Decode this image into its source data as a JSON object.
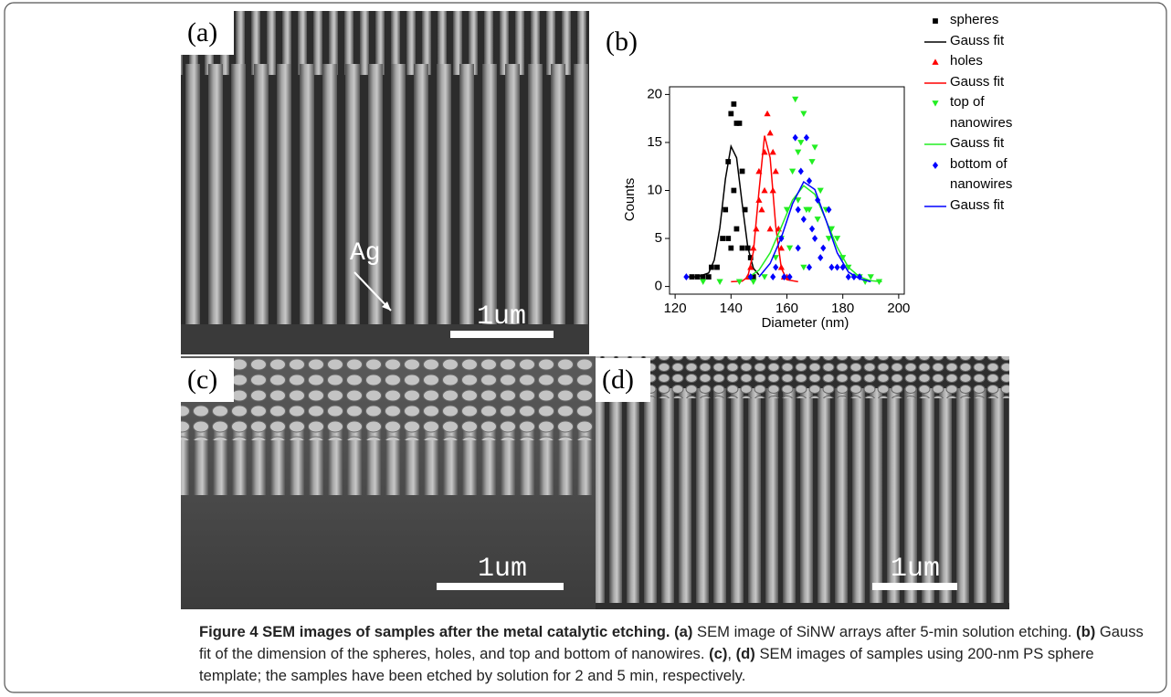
{
  "panels": {
    "a": {
      "label": "(a)",
      "annotation": "Ag",
      "scale_bar": "1um"
    },
    "c": {
      "label": "(c)",
      "scale_bar": "1um"
    },
    "d": {
      "label": "(d)",
      "scale_bar": "1um"
    }
  },
  "chart_data": {
    "type": "scatter",
    "panel_label": "(b)",
    "x_label": "Diameter (nm)",
    "y_label": "Counts",
    "xlim": [
      118,
      202
    ],
    "ylim": [
      -0.8,
      20.8
    ],
    "xticks": [
      120,
      140,
      160,
      180,
      200
    ],
    "yticks": [
      0,
      5,
      10,
      15,
      20
    ],
    "legend": "right",
    "series": [
      {
        "name": "spheres",
        "color": "#000000",
        "marker": "square",
        "x": [
          126,
          128,
          130,
          132,
          133,
          135,
          137,
          138,
          139,
          140,
          141,
          142,
          143,
          144,
          145,
          146,
          147,
          148,
          139,
          140,
          141,
          142,
          144
        ],
        "values": [
          1,
          1,
          1,
          1,
          2,
          2,
          5,
          8,
          13,
          18,
          19,
          17,
          17,
          12,
          8,
          4,
          3,
          1,
          5,
          4,
          10,
          6,
          4
        ]
      },
      {
        "name": "Gauss fit",
        "color": "#000000",
        "marker": "line",
        "x": [
          124,
          128,
          132,
          134,
          136,
          138,
          140,
          142,
          144,
          146,
          148,
          150
        ],
        "values": [
          1.0,
          1.0,
          1.4,
          2.75,
          6.1,
          11.2,
          14.6,
          13.4,
          8.6,
          4.1,
          1.9,
          1.2
        ]
      },
      {
        "name": "holes",
        "color": "#ff0000",
        "marker": "triangle-up",
        "x": [
          146,
          147,
          148,
          149,
          150,
          150,
          151,
          152,
          153,
          154,
          155,
          155,
          156,
          157,
          158,
          158,
          159,
          160,
          152,
          154
        ],
        "values": [
          1,
          2,
          4,
          6,
          9,
          12,
          8,
          14,
          18,
          16,
          10,
          14,
          12,
          6,
          4,
          2,
          1,
          1,
          10,
          6
        ]
      },
      {
        "name": "Gauss fit",
        "color": "#ff0000",
        "marker": "line",
        "x": [
          140,
          144,
          146,
          148,
          150,
          152,
          154,
          156,
          158,
          160,
          164
        ],
        "values": [
          0.5,
          0.55,
          1.0,
          3.6,
          9.9,
          15.7,
          13.4,
          6.3,
          1.9,
          0.7,
          0.5
        ]
      },
      {
        "name": "top of nanowires",
        "color": "#22ee22",
        "marker": "triangle-down",
        "x": [
          130,
          136,
          143,
          148,
          152,
          156,
          158,
          160,
          161,
          162,
          163,
          164,
          165,
          166,
          167,
          168,
          169,
          170,
          171,
          172,
          174,
          175,
          176,
          178,
          180,
          182,
          184,
          186,
          188,
          190,
          193,
          166,
          164
        ],
        "values": [
          0.5,
          0.5,
          0.5,
          0.5,
          1,
          3,
          5,
          8,
          4,
          12,
          19.5,
          9,
          15,
          2,
          8,
          8,
          13,
          14.5,
          7,
          10,
          8,
          5,
          6,
          5,
          3,
          2,
          1,
          1,
          0.5,
          1,
          0.5,
          18,
          14
        ]
      },
      {
        "name": "Gauss fit",
        "color": "#22ee22",
        "marker": "line",
        "x": [
          146,
          150,
          154,
          158,
          162,
          166,
          170,
          174,
          178,
          182,
          186,
          190,
          194
        ],
        "values": [
          0.9,
          1.7,
          3.5,
          6.2,
          9.0,
          10.5,
          9.6,
          6.9,
          4.1,
          2.0,
          1.0,
          0.6,
          0.5
        ]
      },
      {
        "name": "bottom of nanowires",
        "color": "#0000ff",
        "marker": "diamond",
        "x": [
          124,
          147,
          155,
          156,
          158,
          159,
          161,
          163,
          164,
          165,
          166,
          167,
          168,
          169,
          170,
          171,
          172,
          173,
          175,
          176,
          178,
          180,
          182,
          184,
          186,
          164,
          168
        ],
        "values": [
          1,
          1,
          1,
          2,
          5,
          1,
          1,
          15.5,
          8,
          12,
          7,
          15.5,
          11,
          6,
          5,
          9,
          3,
          4,
          8,
          2,
          2,
          2,
          1,
          1,
          1,
          4,
          2
        ]
      },
      {
        "name": "Gauss fit",
        "color": "#0000ff",
        "marker": "line",
        "x": [
          150,
          154,
          158,
          162,
          166,
          170,
          174,
          178,
          182,
          186,
          190
        ],
        "values": [
          1.0,
          2.4,
          5.1,
          8.6,
          10.9,
          10.1,
          6.9,
          3.5,
          1.5,
          0.8,
          0.5
        ]
      }
    ]
  },
  "caption": {
    "title": "Figure 4 SEM images of samples after the metal catalytic etching.",
    "items": [
      {
        "label": "(a)",
        "text": "SEM image of SiNW arrays after 5-min solution etching."
      },
      {
        "label": "(b)",
        "text": "Gauss fit of the dimension of the spheres, holes, and top and bottom of nanowires."
      },
      {
        "label": "(c)",
        "text": ","
      },
      {
        "label": "(d)",
        "text": "SEM images of samples using 200-nm PS sphere template; the samples have been etched by solution for 2 and 5 min, respectively."
      }
    ]
  }
}
